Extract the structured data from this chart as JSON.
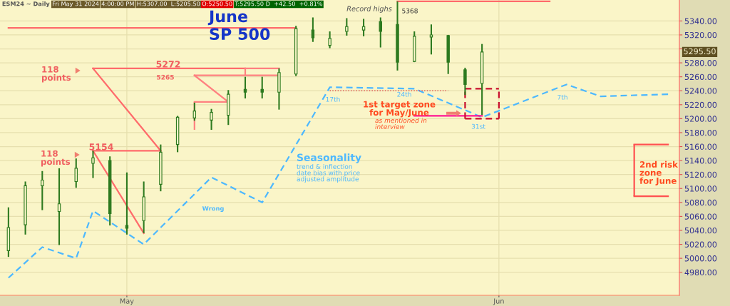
{
  "chart_data": {
    "type": "candlestick",
    "title": "June\nSP 500",
    "categories": [
      null,
      null,
      null,
      null,
      null,
      null,
      null,
      "May",
      null,
      null,
      null,
      null,
      null,
      null,
      null,
      null,
      null,
      null,
      null,
      null,
      null,
      null,
      null,
      null,
      null,
      null,
      null,
      null,
      null,
      "Jun",
      null,
      null,
      null,
      null,
      null,
      null,
      null,
      null,
      null,
      null
    ],
    "ohlc": [
      [
        5011,
        5073,
        5002,
        5044
      ],
      [
        5048,
        5110,
        5034,
        5104
      ],
      [
        5104,
        5125,
        5069,
        5112
      ],
      [
        5067,
        5129,
        5019,
        5078
      ],
      [
        5110,
        5143,
        5101,
        5129
      ],
      [
        5136,
        5154,
        5115,
        5144
      ],
      [
        5140,
        5146,
        5047,
        5064
      ],
      [
        5047,
        5123,
        5034,
        5043
      ],
      [
        5054,
        5110,
        5036,
        5088
      ],
      [
        5106,
        5163,
        5096,
        5152
      ],
      [
        5163,
        5204,
        5152,
        5202
      ],
      [
        5201,
        5223,
        5197,
        5211
      ],
      [
        5198,
        5214,
        5184,
        5209
      ],
      [
        5205,
        5241,
        5191,
        5235
      ],
      [
        5242,
        5260,
        5229,
        5238
      ],
      [
        5242,
        5260,
        5229,
        5238
      ],
      [
        5238,
        5272,
        5213,
        5266
      ],
      [
        5264,
        5333,
        5261,
        5329
      ],
      [
        5327,
        5345,
        5310,
        5316
      ],
      [
        5305,
        5325,
        5301,
        5315
      ],
      [
        5325,
        5344,
        5319,
        5332
      ],
      [
        5327,
        5343,
        5318,
        5332
      ],
      [
        5339,
        5345,
        5302,
        5325
      ],
      [
        5335,
        5368,
        5269,
        5281
      ],
      [
        5282,
        5325,
        5281,
        5318
      ],
      [
        5317,
        5335,
        5292,
        5320
      ],
      [
        5319,
        5320,
        5264,
        5281
      ],
      [
        5270,
        5273,
        5234,
        5249
      ],
      [
        5250.5,
        5307,
        5205.5,
        5295.5
      ],
      null,
      null,
      null,
      null,
      null,
      null,
      null,
      null,
      null,
      null,
      null
    ],
    "color": "#2d7a1f",
    "series": [
      {
        "type": "line",
        "color": "#4db8ff",
        "line_style": "dashed",
        "values": [
          4972,
          null,
          5016,
          null,
          5000,
          5068,
          null,
          null,
          5020,
          null,
          null,
          null,
          5116,
          null,
          null,
          5080,
          null,
          null,
          null,
          5245,
          null,
          null,
          null,
          null,
          5243,
          null,
          null,
          null,
          5202,
          null,
          null,
          null,
          null,
          5249,
          null,
          5232,
          null,
          null,
          null,
          5235
        ]
      },
      {
        "type": "line",
        "color": "#ff6b6b",
        "line_style": "solid",
        "values": [
          5330,
          5330,
          5330,
          5330,
          5330,
          5330,
          5330,
          5330,
          5330,
          5330,
          5330,
          5330,
          5330,
          5330,
          5330,
          5330,
          5330,
          5330,
          null,
          null,
          null,
          null,
          null,
          null,
          null,
          null,
          null,
          null,
          null,
          null,
          null,
          null,
          null,
          null,
          null,
          null,
          null,
          null,
          null,
          null
        ]
      },
      {
        "type": "line",
        "color": "#ff6b6b",
        "line_style": "solid",
        "values": [
          null,
          null,
          null,
          null,
          null,
          null,
          null,
          null,
          null,
          null,
          null,
          null,
          null,
          null,
          null,
          null,
          null,
          null,
          null,
          null,
          null,
          null,
          null,
          5368,
          5368,
          5368,
          5368,
          5368,
          5368,
          5368,
          5368,
          5368,
          5368,
          null,
          null,
          null,
          null,
          null,
          null,
          null
        ]
      },
      {
        "type": "line",
        "color": "#ff6b6b",
        "line_style": "solid",
        "values": [
          null,
          null,
          null,
          null,
          null,
          5272,
          5272,
          5272,
          5272,
          5272,
          5272,
          5272,
          5272,
          5272,
          5272,
          null,
          null,
          null,
          null,
          null,
          null,
          null,
          null,
          null,
          null,
          null,
          null,
          null,
          null,
          null,
          null,
          null,
          null,
          null,
          null,
          null,
          null,
          null,
          null,
          null
        ]
      },
      {
        "type": "line",
        "color": "#ff6b6b",
        "line_style": "solid",
        "values": [
          null,
          null,
          null,
          null,
          null,
          5272,
          null,
          null,
          null,
          5154,
          null,
          null,
          null,
          null,
          null,
          null,
          null,
          null,
          null,
          null,
          null,
          null,
          null,
          null,
          null,
          null,
          null,
          null,
          null,
          null,
          null,
          null,
          null,
          null,
          null,
          null,
          null,
          null,
          null,
          null
        ]
      },
      {
        "type": "line",
        "color": "#ff8080",
        "line_style": "solid",
        "values": [
          null,
          null,
          null,
          null,
          null,
          null,
          null,
          null,
          null,
          null,
          null,
          null,
          null,
          null,
          5272,
          5272,
          5272,
          null,
          null,
          null,
          null,
          null,
          null,
          null,
          null,
          null,
          null,
          null,
          null,
          null,
          null,
          null,
          null,
          null,
          null,
          null,
          null,
          null,
          null,
          null
        ],
        "errors": [
          null,
          null,
          null,
          null,
          null,
          null,
          null,
          null,
          null,
          null,
          null,
          null,
          null,
          null,
          [
            5262,
            5272
          ],
          null,
          null,
          null,
          null,
          null,
          null,
          null,
          null,
          null,
          null,
          null,
          null,
          null,
          null,
          null,
          null,
          null,
          null,
          null,
          null,
          null,
          null,
          null,
          null,
          null
        ]
      },
      {
        "type": "line",
        "color": "#ff8080",
        "line_style": "solid",
        "values": [
          null,
          null,
          null,
          null,
          null,
          null,
          null,
          null,
          null,
          null,
          null,
          5262,
          5262,
          5262,
          5262,
          5262,
          5262,
          null,
          null,
          null,
          null,
          null,
          null,
          null,
          null,
          null,
          null,
          null,
          null,
          null,
          null,
          null,
          null,
          null,
          null,
          null,
          null,
          null,
          null,
          null
        ]
      },
      {
        "type": "line",
        "color": "#ff8080",
        "line_style": "solid",
        "values": [
          null,
          null,
          null,
          null,
          null,
          null,
          null,
          null,
          null,
          null,
          null,
          5262,
          null,
          5224,
          null,
          null,
          null,
          null,
          null,
          null,
          null,
          null,
          null,
          null,
          null,
          null,
          null,
          null,
          null,
          null,
          null,
          null,
          null,
          null,
          null,
          null,
          null,
          null,
          null,
          null
        ]
      },
      {
        "type": "line",
        "color": "#ff8080",
        "line_style": "solid",
        "values": [
          null,
          null,
          null,
          null,
          null,
          null,
          null,
          null,
          null,
          null,
          null,
          5224,
          5224,
          5224,
          null,
          null,
          null,
          null,
          null,
          null,
          null,
          null,
          null,
          null,
          null,
          null,
          null,
          null,
          null,
          null,
          null,
          null,
          null,
          null,
          null,
          null,
          null,
          null,
          null,
          null
        ],
        "errors": [
          null,
          null,
          null,
          null,
          null,
          null,
          null,
          null,
          null,
          null,
          null,
          [
            5184,
            5224
          ],
          null,
          null,
          null,
          null,
          null,
          null,
          null,
          null,
          null,
          null,
          null,
          null,
          null,
          null,
          null,
          null,
          null,
          null,
          null,
          null,
          null,
          null,
          null,
          null,
          null,
          null,
          null,
          null
        ]
      },
      {
        "type": "line",
        "color": "#ff6b6b",
        "line_style": "solid",
        "values": [
          null,
          null,
          null,
          null,
          null,
          5154,
          5154,
          5154,
          5154,
          5154,
          null,
          null,
          null,
          null,
          null,
          null,
          null,
          null,
          null,
          null,
          null,
          null,
          null,
          null,
          null,
          null,
          null,
          null,
          null,
          null,
          null,
          null,
          null,
          null,
          null,
          null,
          null,
          null,
          null,
          null
        ]
      },
      {
        "type": "line",
        "color": "#ff6b6b",
        "line_style": "solid",
        "values": [
          null,
          null,
          null,
          null,
          null,
          5154,
          null,
          null,
          5036,
          null,
          null,
          null,
          null,
          null,
          null,
          null,
          null,
          null,
          null,
          null,
          null,
          null,
          null,
          null,
          null,
          null,
          null,
          null,
          null,
          null,
          null,
          null,
          null,
          null,
          null,
          null,
          null,
          null,
          null,
          null
        ]
      },
      {
        "type": "line",
        "color": "#e05050",
        "line_style": "dotted",
        "values": [
          null,
          null,
          null,
          null,
          null,
          null,
          null,
          null,
          null,
          null,
          null,
          null,
          null,
          null,
          null,
          null,
          null,
          null,
          null,
          5240,
          5240,
          5240,
          5240,
          5240,
          5240,
          5240,
          5240,
          null,
          null,
          null,
          null,
          null,
          null,
          null,
          null,
          null,
          null,
          null,
          null,
          null
        ]
      },
      {
        "type": "line",
        "color": "#ff1493",
        "line_style": "solid",
        "values": [
          null,
          null,
          null,
          null,
          null,
          null,
          null,
          null,
          null,
          null,
          null,
          null,
          null,
          null,
          null,
          null,
          null,
          null,
          null,
          null,
          null,
          null,
          null,
          null,
          5204,
          5204,
          5204,
          5204,
          5204,
          null,
          null,
          null,
          null,
          null,
          null,
          null,
          null,
          null,
          null,
          null
        ]
      },
      {
        "type": "line",
        "color": "#c8102e",
        "line_style": "dashed",
        "values": [
          null,
          null,
          null,
          null,
          null,
          null,
          null,
          null,
          null,
          null,
          null,
          null,
          null,
          null,
          null,
          null,
          null,
          null,
          null,
          null,
          null,
          null,
          null,
          null,
          null,
          null,
          null,
          5243,
          5243,
          5243,
          null,
          null,
          null,
          null,
          null,
          null,
          null,
          null,
          null,
          null
        ],
        "errors": [
          null,
          null,
          null,
          null,
          null,
          null,
          null,
          null,
          null,
          null,
          null,
          null,
          null,
          null,
          null,
          null,
          null,
          null,
          null,
          null,
          null,
          null,
          null,
          null,
          null,
          null,
          null,
          [
            5200,
            5243
          ],
          null,
          [
            5200,
            5243
          ],
          null,
          null,
          null,
          null,
          null,
          null,
          null,
          null,
          null,
          null
        ]
      },
      {
        "type": "line",
        "color": "#c8102e",
        "line_style": "dashed",
        "values": [
          null,
          null,
          null,
          null,
          null,
          null,
          null,
          null,
          null,
          null,
          null,
          null,
          null,
          null,
          null,
          null,
          null,
          null,
          null,
          null,
          null,
          null,
          null,
          null,
          null,
          null,
          null,
          5200,
          5200,
          5200,
          null,
          null,
          null,
          null,
          null,
          null,
          null,
          null,
          null,
          null
        ]
      },
      {
        "type": "line",
        "color": "#ff5050",
        "line_style": "solid",
        "values": [
          null,
          null,
          null,
          null,
          null,
          null,
          null,
          null,
          null,
          null,
          null,
          null,
          null,
          null,
          null,
          null,
          null,
          null,
          null,
          null,
          null,
          null,
          null,
          null,
          null,
          null,
          null,
          null,
          null,
          null,
          null,
          null,
          null,
          null,
          null,
          null,
          null,
          5163,
          5163,
          5163
        ],
        "errors": [
          null,
          null,
          null,
          null,
          null,
          null,
          null,
          null,
          null,
          null,
          null,
          null,
          null,
          null,
          null,
          null,
          null,
          null,
          null,
          null,
          null,
          null,
          null,
          null,
          null,
          null,
          null,
          null,
          null,
          null,
          null,
          null,
          null,
          null,
          null,
          null,
          null,
          [
            5089,
            5163
          ],
          null,
          null
        ]
      },
      {
        "type": "line",
        "color": "#ff5050",
        "line_style": "solid",
        "values": [
          null,
          null,
          null,
          null,
          null,
          null,
          null,
          null,
          null,
          null,
          null,
          null,
          null,
          null,
          null,
          null,
          null,
          null,
          null,
          null,
          null,
          null,
          null,
          null,
          null,
          null,
          null,
          null,
          null,
          null,
          null,
          null,
          null,
          null,
          null,
          null,
          null,
          5089,
          5089,
          5089
        ]
      }
    ],
    "ylim": [
      4947,
      5370
    ],
    "yticks": [
      {
        "value": 4980,
        "label": "4980.00"
      },
      {
        "value": 5000,
        "label": "5000.00"
      },
      {
        "value": 5020,
        "label": "5020.00"
      },
      {
        "value": 5040,
        "label": "5040.00"
      },
      {
        "value": 5060,
        "label": "5060.00"
      },
      {
        "value": 5080,
        "label": "5080.00"
      },
      {
        "value": 5100,
        "label": "5100.00"
      },
      {
        "value": 5120,
        "label": "5120.00"
      },
      {
        "value": 5140,
        "label": "5140.00"
      },
      {
        "value": 5160,
        "label": "5160.00"
      },
      {
        "value": 5180,
        "label": "5180.00"
      },
      {
        "value": 5200,
        "label": "5200.00"
      },
      {
        "value": 5220,
        "label": "5220.00"
      },
      {
        "value": 5240,
        "label": "5240.00"
      },
      {
        "value": 5260,
        "label": "5260.00"
      },
      {
        "value": 5280,
        "label": "5280.00"
      },
      {
        "value": 5300,
        "label": null
      },
      {
        "value": 5320,
        "label": "5320.00"
      },
      {
        "value": 5340,
        "label": "5340.00"
      }
    ],
    "grid": true,
    "annotations": [
      "ESM24 ~ Daily",
      "Fri May 31 2024",
      "4:00:00 PM",
      "H:5307.00  L:5205.50",
      "O:5250.50",
      "T:5295.50 D  +42.50  +0.81%",
      "Record highs",
      "5368",
      "5272",
      "5265",
      "118\npoints",
      "5154",
      "118\npoints",
      "17th",
      "24th",
      "1st target zone\nfor May/June",
      "as mentioned in\ninterview",
      "31st",
      "7th",
      "Seasonality",
      "trend & inflection\ndate bias with price\nadjusted amplitude",
      "Wrong",
      "2nd risk\nzone\nfor June",
      "5295.50"
    ]
  }
}
